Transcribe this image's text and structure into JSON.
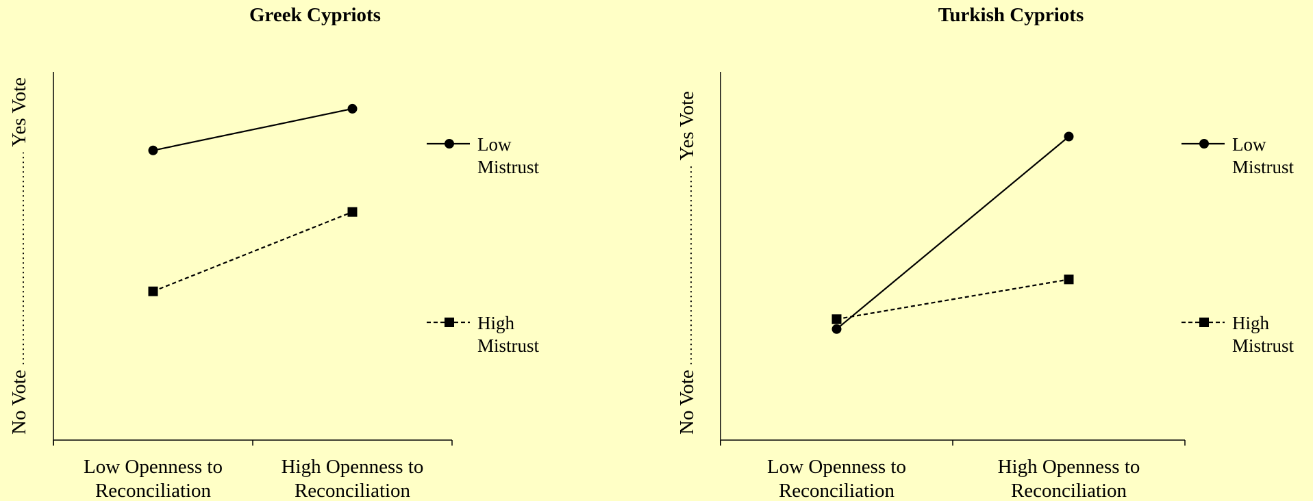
{
  "chart_data": [
    {
      "type": "line",
      "title": "Greek Cypriots",
      "xlabel": "",
      "ylabel_low": "No Vote",
      "ylabel_high": "Yes Vote",
      "categories": [
        [
          "Low Openness to",
          "Reconciliation"
        ],
        [
          "High Openness to",
          "Reconciliation"
        ]
      ],
      "ylim": [
        0,
        1
      ],
      "grid": false,
      "legend_position": "right",
      "series": [
        {
          "name": [
            "Low",
            "Mistrust"
          ],
          "values": [
            0.69,
            0.795
          ],
          "line": "solid",
          "marker": "circle"
        },
        {
          "name": [
            "High",
            "Mistrust"
          ],
          "values": [
            0.335,
            0.535
          ],
          "line": "dashed",
          "marker": "square"
        }
      ]
    },
    {
      "type": "line",
      "title": "Turkish Cypriots",
      "xlabel": "",
      "ylabel_low": "No Vote",
      "ylabel_high": "Yes Vote",
      "categories": [
        [
          "Low Openness to",
          "Reconciliation"
        ],
        [
          "High Openness to",
          "Reconciliation"
        ]
      ],
      "ylim": [
        0,
        1
      ],
      "grid": false,
      "legend_position": "right",
      "series": [
        {
          "name": [
            "Low",
            "Mistrust"
          ],
          "values": [
            0.24,
            0.725
          ],
          "line": "solid",
          "marker": "circle"
        },
        {
          "name": [
            "High",
            "Mistrust"
          ],
          "values": [
            0.265,
            0.365
          ],
          "line": "dashed",
          "marker": "square"
        }
      ]
    }
  ],
  "colors": {
    "background": "#ffffc6",
    "ink": "#000000"
  }
}
